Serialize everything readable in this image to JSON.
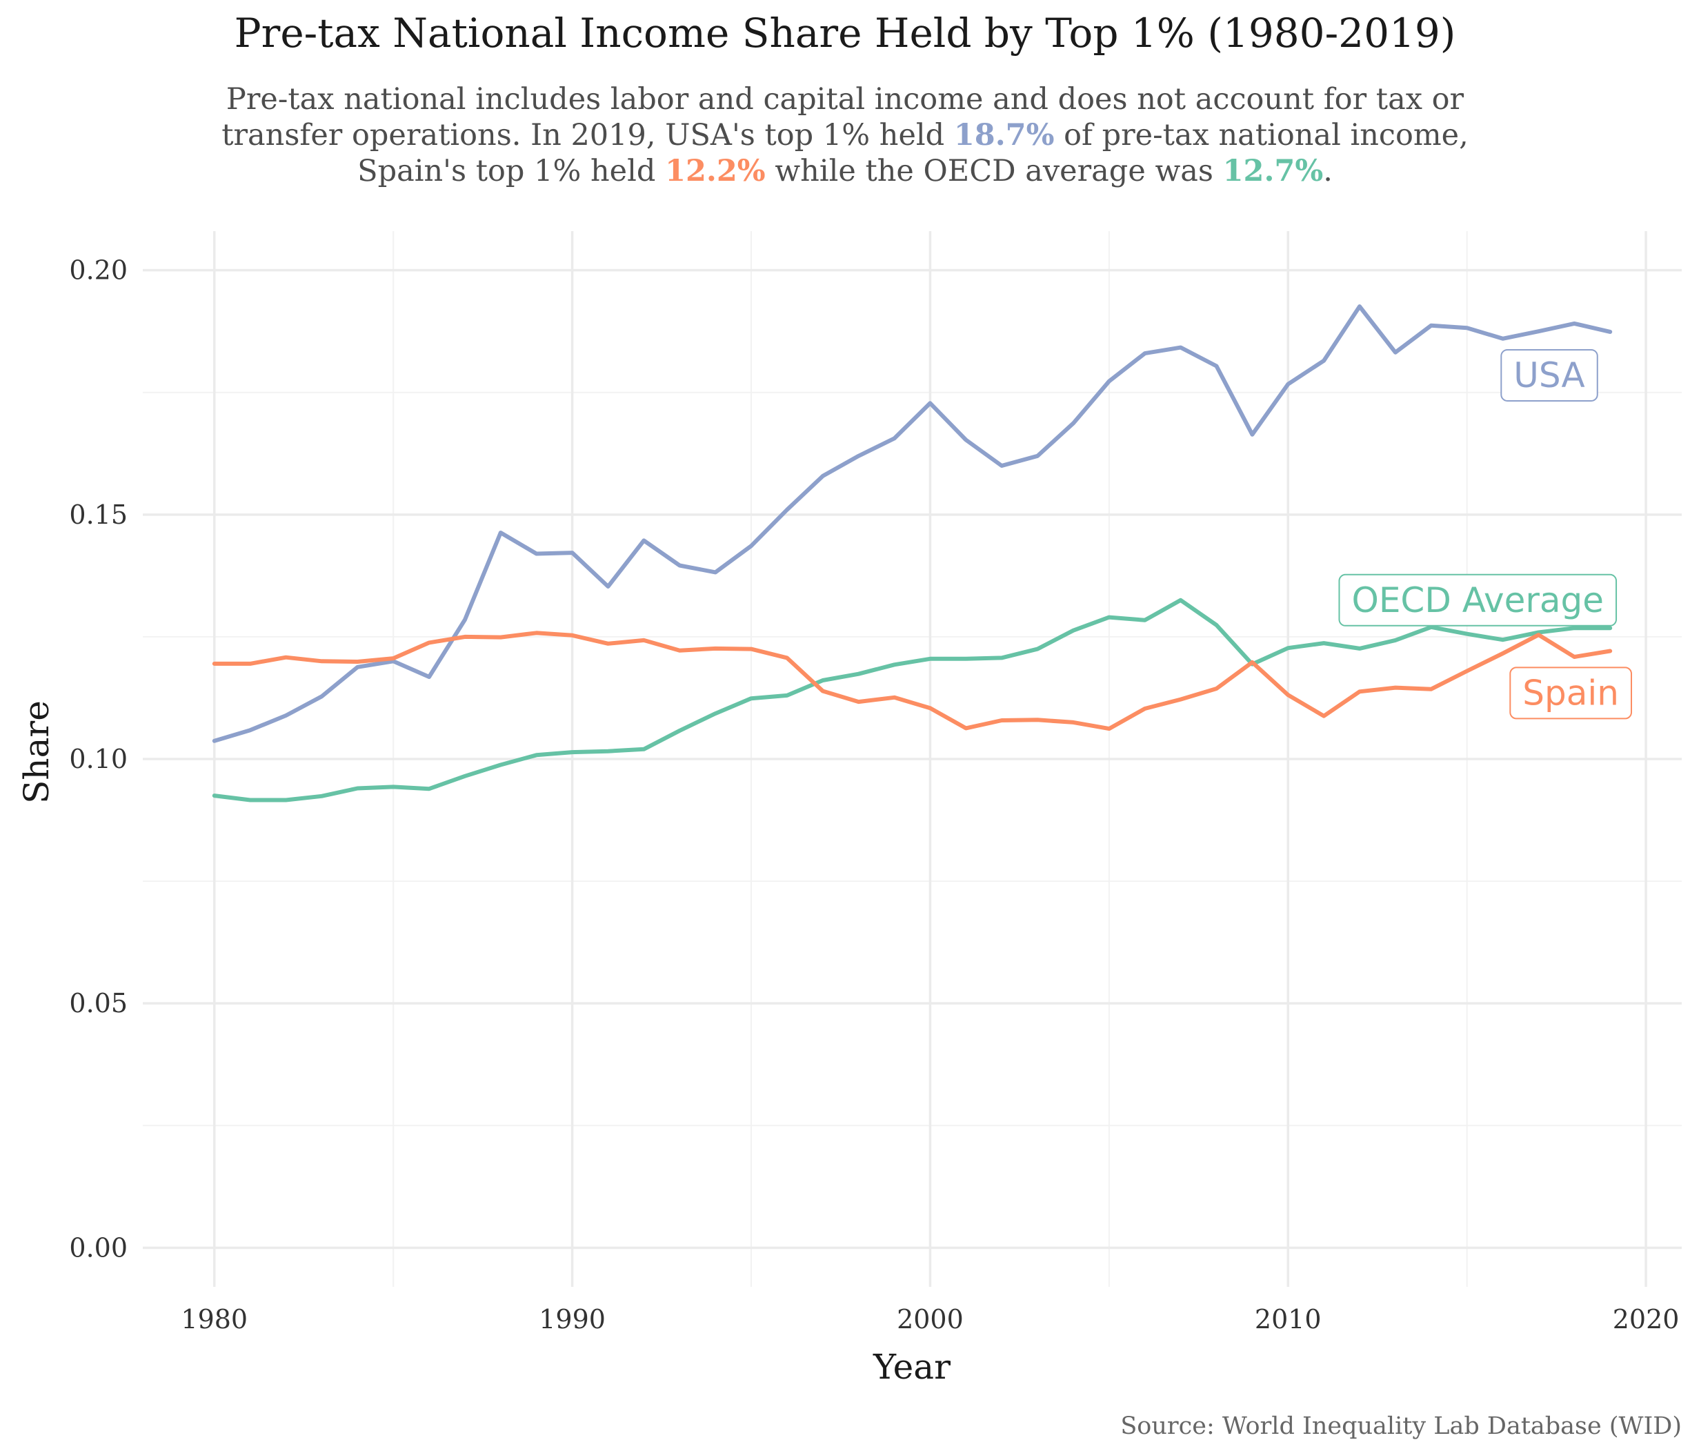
{
  "chart_data": {
    "type": "line",
    "title": "Pre-tax National Income Share Held by Top 1% (1980-2019)",
    "subtitle": {
      "line1": "Pre-tax national includes labor and capital income and does not account for tax or",
      "line2_a": "transfer operations. In 2019, USA's top 1% held ",
      "usa_value": "18.7%",
      "line2_b": "  of pre-tax national income,",
      "line3_a": "Spain's top 1% held ",
      "spain_value": "12.2%",
      "line3_b": " while the OECD average was ",
      "oecd_value": "12.7%",
      "line3_c": "."
    },
    "xlabel": "Year",
    "ylabel": "Share",
    "caption": "Source: World Inequality Lab Database (WID)",
    "xlim": [
      1978,
      2021
    ],
    "ylim": [
      -0.008,
      0.208
    ],
    "x_ticks": [
      1980,
      1990,
      2000,
      2010,
      2020
    ],
    "x_tick_labels": [
      "1980",
      "1990",
      "2000",
      "2010",
      "2020"
    ],
    "y_ticks": [
      0,
      0.05,
      0.1,
      0.15,
      0.2
    ],
    "y_tick_labels": [
      "0.00",
      "0.05",
      "0.10",
      "0.15",
      "0.20"
    ],
    "grid": true,
    "legend": "none (direct labels at line ends)",
    "x": [
      1980,
      1981,
      1982,
      1983,
      1984,
      1985,
      1986,
      1987,
      1988,
      1989,
      1990,
      1991,
      1992,
      1993,
      1994,
      1995,
      1996,
      1997,
      1998,
      1999,
      2000,
      2001,
      2002,
      2003,
      2004,
      2005,
      2006,
      2007,
      2008,
      2009,
      2010,
      2011,
      2012,
      2013,
      2014,
      2015,
      2016,
      2017,
      2018,
      2019
    ],
    "series": [
      {
        "name": "USA",
        "color": "#8da0cb",
        "values": [
          0.1037,
          0.1059,
          0.1089,
          0.1128,
          0.1188,
          0.12,
          0.1168,
          0.1285,
          0.1463,
          0.142,
          0.1422,
          0.1353,
          0.1447,
          0.1396,
          0.1382,
          0.1436,
          0.151,
          0.1579,
          0.162,
          0.1656,
          0.1728,
          0.1653,
          0.16,
          0.162,
          0.1687,
          0.1773,
          0.183,
          0.1842,
          0.1804,
          0.1664,
          0.1767,
          0.1815,
          0.1926,
          0.1832,
          0.1887,
          0.1882,
          0.186,
          0.1875,
          0.1891,
          0.1874
        ]
      },
      {
        "name": "OECD Average",
        "color": "#66c2a5",
        "values": [
          0.0925,
          0.0916,
          0.0916,
          0.0924,
          0.094,
          0.0943,
          0.0939,
          0.0965,
          0.0988,
          0.1008,
          0.1014,
          0.1016,
          0.102,
          0.1058,
          0.1093,
          0.1124,
          0.113,
          0.1161,
          0.1174,
          0.1193,
          0.1205,
          0.1205,
          0.1207,
          0.1225,
          0.1263,
          0.129,
          0.1284,
          0.1325,
          0.1274,
          0.1194,
          0.1227,
          0.1237,
          0.1226,
          0.1243,
          0.127,
          0.1256,
          0.1244,
          0.1259,
          0.1268,
          0.1268
        ]
      },
      {
        "name": "Spain",
        "color": "#fc8d62",
        "values": [
          0.1195,
          0.1195,
          0.1208,
          0.12,
          0.1199,
          0.1206,
          0.1238,
          0.125,
          0.1249,
          0.1258,
          0.1253,
          0.1236,
          0.1243,
          0.1222,
          0.1226,
          0.1225,
          0.1207,
          0.1139,
          0.1117,
          0.1126,
          0.1104,
          0.1063,
          0.1079,
          0.108,
          0.1075,
          0.1062,
          0.1103,
          0.1122,
          0.1144,
          0.1198,
          0.1131,
          0.1088,
          0.1138,
          0.1146,
          0.1143,
          0.118,
          0.1216,
          0.1254,
          0.1209,
          0.1221
        ]
      }
    ],
    "labels": [
      {
        "text": "USA",
        "x": 2017.3,
        "y": 0.1785,
        "color": "#8da0cb"
      },
      {
        "text": "OECD Average",
        "x": 2015.3,
        "y": 0.1325,
        "color": "#66c2a5"
      },
      {
        "text": "Spain",
        "x": 2017.9,
        "y": 0.1135,
        "color": "#fc8d62"
      }
    ]
  }
}
